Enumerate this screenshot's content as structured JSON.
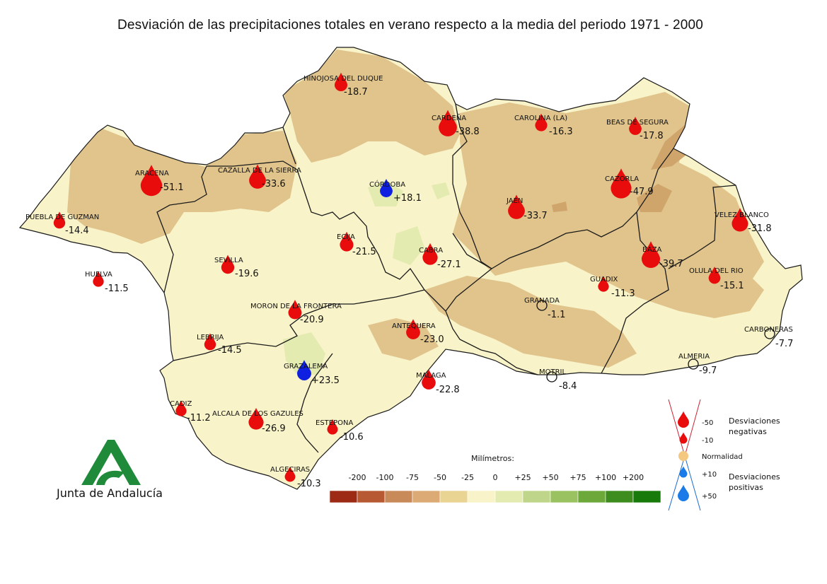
{
  "title": "Desviación de las precipitaciones totales en verano respecto a la media del periodo 1971 - 2000",
  "stations": [
    {
      "name": "HINOJOSA DEL DUQUE",
      "value": "-18.7",
      "kind": "neg",
      "size": 18.7
    },
    {
      "name": "CARDEÑA",
      "value": "-38.8",
      "kind": "neg",
      "size": 38.8
    },
    {
      "name": "CAROLINA (LA)",
      "value": "-16.3",
      "kind": "neg",
      "size": 16.3
    },
    {
      "name": "BEAS DE SEGURA",
      "value": "-17.8",
      "kind": "neg",
      "size": 17.8
    },
    {
      "name": "ARACENA",
      "value": "-51.1",
      "kind": "neg",
      "size": 51.1
    },
    {
      "name": "CAZALLA DE LA SIERRA",
      "value": "-33.6",
      "kind": "neg",
      "size": 33.6
    },
    {
      "name": "CÓRDOBA",
      "value": "+18.1",
      "kind": "pos",
      "size": 18.1
    },
    {
      "name": "CAZORLA",
      "value": "-47.9",
      "kind": "neg",
      "size": 47.9
    },
    {
      "name": "JAEN",
      "value": "-33.7",
      "kind": "neg",
      "size": 33.7
    },
    {
      "name": "VELEZ BLANCO",
      "value": "-31.8",
      "kind": "neg",
      "size": 31.8
    },
    {
      "name": "PUEBLA DE GUZMAN",
      "value": "-14.4",
      "kind": "neg",
      "size": 14.4
    },
    {
      "name": "ECIJA",
      "value": "-21.5",
      "kind": "neg",
      "size": 21.5
    },
    {
      "name": "CABRA",
      "value": "-27.1",
      "kind": "neg",
      "size": 27.1
    },
    {
      "name": "BAZA",
      "value": "-39.7",
      "kind": "neg",
      "size": 39.7
    },
    {
      "name": "SEVILLA",
      "value": "-19.6",
      "kind": "neg",
      "size": 19.6
    },
    {
      "name": "OLULA DEL RIO",
      "value": "-15.1",
      "kind": "neg",
      "size": 15.1
    },
    {
      "name": "HUELVA",
      "value": "-11.5",
      "kind": "neg",
      "size": 11.5
    },
    {
      "name": "GUADIX",
      "value": "-11.3",
      "kind": "neg",
      "size": 11.3
    },
    {
      "name": "GRANADA",
      "value": "-1.1",
      "kind": "norm",
      "size": 0
    },
    {
      "name": "MORON DE LA FRONTERA",
      "value": "-20.9",
      "kind": "neg",
      "size": 20.9
    },
    {
      "name": "ANTEQUERA",
      "value": "-23.0",
      "kind": "neg",
      "size": 23.0
    },
    {
      "name": "CARBONERAS",
      "value": "-7.7",
      "kind": "norm",
      "size": 0
    },
    {
      "name": "LEBRIJA",
      "value": "-14.5",
      "kind": "neg",
      "size": 14.5
    },
    {
      "name": "ALMERIA",
      "value": "-9.7",
      "kind": "norm",
      "size": 0
    },
    {
      "name": "GRAZALEMA",
      "value": "+23.5",
      "kind": "pos",
      "size": 23.5
    },
    {
      "name": "MOTRIL",
      "value": "-8.4",
      "kind": "norm",
      "size": 0
    },
    {
      "name": "MALAGA",
      "value": "-22.8",
      "kind": "neg",
      "size": 22.8
    },
    {
      "name": "CADIZ",
      "value": "-11.2",
      "kind": "neg",
      "size": 11.2
    },
    {
      "name": "ALCALA DE LOS GAZULES",
      "value": "-26.9",
      "kind": "neg",
      "size": 26.9
    },
    {
      "name": "ESTEPONA",
      "value": "-10.6",
      "kind": "neg",
      "size": 10.6
    },
    {
      "name": "ALGECIRAS",
      "value": "-10.3",
      "kind": "neg",
      "size": 10.3
    }
  ],
  "scale": {
    "label": "Milímetros:",
    "ticks": [
      "-200",
      "-100",
      "-75",
      "-50",
      "-25",
      "0",
      "+25",
      "+50",
      "+75",
      "+100",
      "+200"
    ],
    "colors": [
      "#9c2a14",
      "#b75a33",
      "#c98a5a",
      "#dcaa74",
      "#ead494",
      "#f8f3c8",
      "#e4ebb0",
      "#bfd68a",
      "#9ac260",
      "#6da83a",
      "#3d8c1e",
      "#197a0c"
    ]
  },
  "symbol_legend": {
    "items": [
      {
        "value": "-50",
        "kind": "neg",
        "size": 50
      },
      {
        "value": "-10",
        "kind": "neg",
        "size": 10
      },
      {
        "value": "Normalidad",
        "kind": "norm",
        "size": 0
      },
      {
        "value": "+10",
        "kind": "pos",
        "size": 10
      },
      {
        "value": "+50",
        "kind": "pos",
        "size": 50
      }
    ],
    "negative_label": [
      "Desviaciones",
      "negativas"
    ],
    "positive_label": [
      "Desviaciones",
      "positivas"
    ]
  },
  "logo": {
    "text": "Junta de Andalucía"
  },
  "colors": {
    "negative_drop": "#e80c0c",
    "positive_drop_map": "#1020e0",
    "positive_drop_legend": "#1a7ae8",
    "normal_circle_legend": "#f5c880",
    "land_base": "#f8f3c8",
    "land_dry": "#e0c48c",
    "land_dryer": "#cfa56c",
    "land_wet": "#e4ebb0",
    "logo_green": "#1f8a3a"
  }
}
